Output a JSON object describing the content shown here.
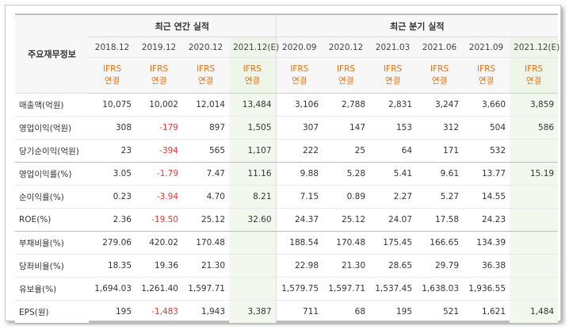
{
  "label_header": "주요재무정보",
  "group_annual": "최근 연간 실적",
  "group_quarter": "최근 분기 실적",
  "periods": [
    "2018.12",
    "2019.12",
    "2020.12",
    "2021.12(E)",
    "2020.09",
    "2020.12",
    "2021.03",
    "2021.06",
    "2021.09",
    "2021.12(E)"
  ],
  "ifrs_line1": "IFRS",
  "ifrs_line2": "연결",
  "rows": [
    {
      "label": "매출액(억원)",
      "values": [
        "10,075",
        "10,002",
        "12,014",
        "13,484",
        "3,106",
        "2,788",
        "2,831",
        "3,247",
        "3,660",
        "3,859"
      ]
    },
    {
      "label": "영업이익(억원)",
      "values": [
        "308",
        "-179",
        "897",
        "1,505",
        "307",
        "147",
        "153",
        "312",
        "504",
        "586"
      ]
    },
    {
      "label": "당기순이익(억원)",
      "values": [
        "23",
        "-394",
        "565",
        "1,107",
        "222",
        "25",
        "64",
        "171",
        "532",
        ""
      ]
    },
    {
      "label": "영업이익률(%)",
      "values": [
        "3.05",
        "-1.79",
        "7.47",
        "11.16",
        "9.88",
        "5.28",
        "5.41",
        "9.61",
        "13.77",
        "15.19"
      ]
    },
    {
      "label": "순이익률(%)",
      "values": [
        "0.23",
        "-3.94",
        "4.70",
        "8.21",
        "7.15",
        "0.89",
        "2.27",
        "5.27",
        "14.55",
        ""
      ]
    },
    {
      "label": "ROE(%)",
      "values": [
        "2.36",
        "-19.50",
        "25.12",
        "32.60",
        "24.37",
        "25.12",
        "24.07",
        "17.58",
        "24.23",
        ""
      ]
    },
    {
      "label": "부채비율(%)",
      "values": [
        "279.06",
        "420.02",
        "170.48",
        "",
        "188.54",
        "170.48",
        "175.45",
        "166.65",
        "134.39",
        ""
      ]
    },
    {
      "label": "당좌비율(%)",
      "values": [
        "18.35",
        "19.36",
        "21.30",
        "",
        "22.98",
        "21.30",
        "28.65",
        "29.79",
        "36.38",
        ""
      ]
    },
    {
      "label": "유보율(%)",
      "values": [
        "1,694.03",
        "1,261.40",
        "1,597.71",
        "",
        "1,579.75",
        "1,597.71",
        "1,537.45",
        "1,638.03",
        "1,936.55",
        ""
      ]
    },
    {
      "label": "EPS(원)",
      "values": [
        "195",
        "-1,483",
        "1,943",
        "3,387",
        "711",
        "68",
        "195",
        "521",
        "1,621",
        "1,484"
      ]
    }
  ],
  "colors": {
    "negative": "#e53935",
    "ifrs": "#e8730c",
    "estimate_bg": "#eef6ea"
  }
}
